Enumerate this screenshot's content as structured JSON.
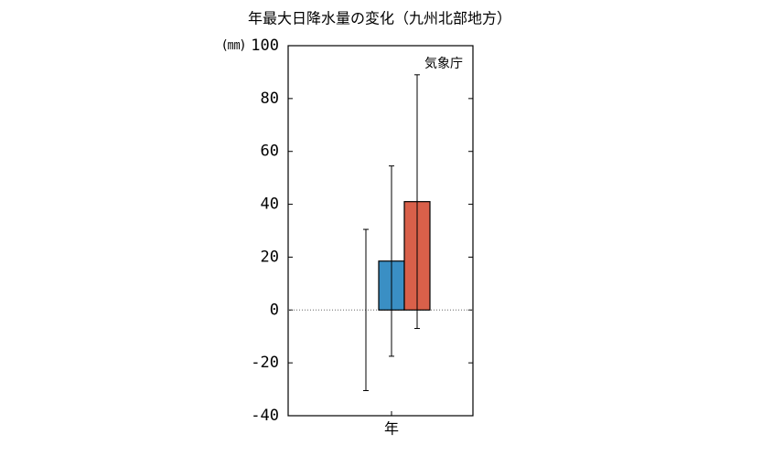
{
  "chart_data": {
    "type": "bar",
    "title": "年最大日降水量の変化（九州北部地方）",
    "ylabel": "(㎜)",
    "annotation": "気象庁",
    "categories": [
      "年"
    ],
    "series": [
      {
        "values": [
          0
        ],
        "errors": [
          30.5
        ]
      },
      {
        "color": "#3a8fc4",
        "values": [
          18.5
        ],
        "errors": [
          36
        ]
      },
      {
        "color": "#d9604a",
        "values": [
          41
        ],
        "errors": [
          48
        ]
      }
    ],
    "ylim": [
      -40,
      100
    ],
    "yticks": [
      -40,
      -20,
      0,
      20,
      40,
      60,
      80,
      100
    ]
  }
}
